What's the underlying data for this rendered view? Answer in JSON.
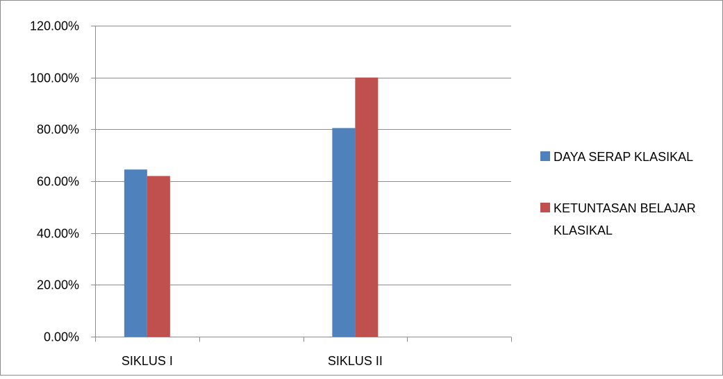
{
  "chart_data": {
    "type": "bar",
    "title": "",
    "xlabel": "",
    "ylabel": "",
    "categories": [
      "SIKLUS I",
      "SIKLUS II"
    ],
    "series": [
      {
        "name": "DAYA SERAP KLASIKAL",
        "values": [
          64.5,
          80.5
        ],
        "color": "#4f81bd"
      },
      {
        "name": "KETUNTASAN BELAJAR KLASIKAL",
        "values": [
          62.0,
          100.0
        ],
        "color": "#c0504d"
      }
    ],
    "ylim": [
      0,
      120
    ],
    "yticks": [
      0,
      20,
      40,
      60,
      80,
      100,
      120
    ],
    "ytick_labels": [
      "0.00%",
      "20.00%",
      "40.00%",
      "60.00%",
      "80.00%",
      "100.00%",
      "120.00%"
    ],
    "grid": true,
    "legend": "right",
    "empty_category_slots": 2
  }
}
